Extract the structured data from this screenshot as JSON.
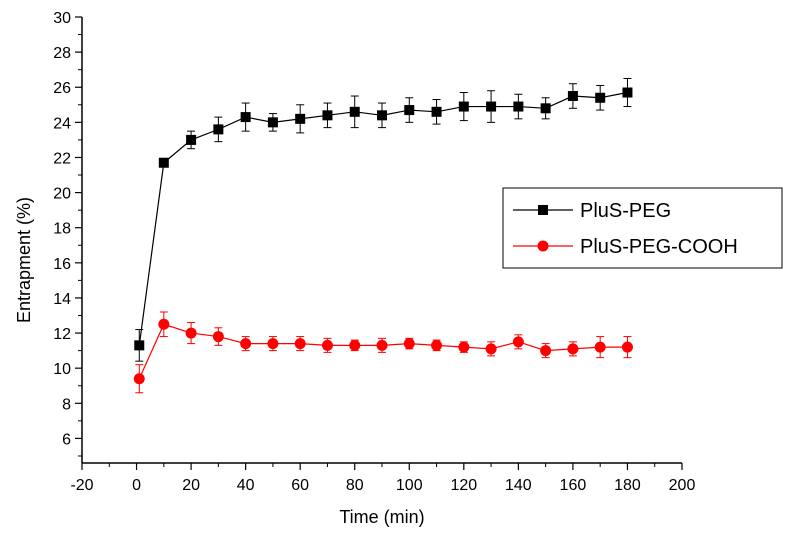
{
  "chart_data": {
    "type": "line",
    "xlabel": "Time (min)",
    "ylabel": "Entrapment (%)",
    "xlim": [
      -20,
      200
    ],
    "ylim": [
      4.6,
      30
    ],
    "xticks": [
      -20,
      0,
      20,
      40,
      60,
      80,
      100,
      120,
      140,
      160,
      180,
      200
    ],
    "yticks": [
      6,
      8,
      10,
      12,
      14,
      16,
      18,
      20,
      22,
      24,
      26,
      28,
      30
    ],
    "legend_position": "right",
    "grid": false,
    "series": [
      {
        "name": "PluS-PEG",
        "color": "#000000",
        "marker": "square",
        "x": [
          1,
          10,
          20,
          30,
          40,
          50,
          60,
          70,
          80,
          90,
          100,
          110,
          120,
          130,
          140,
          150,
          160,
          170,
          180
        ],
        "y": [
          11.3,
          21.7,
          23.0,
          23.6,
          24.3,
          24.0,
          24.2,
          24.4,
          24.6,
          24.4,
          24.7,
          24.6,
          24.9,
          24.9,
          24.9,
          24.8,
          25.5,
          25.4,
          25.7
        ],
        "err": [
          0.9,
          0.2,
          0.5,
          0.7,
          0.8,
          0.5,
          0.8,
          0.7,
          0.9,
          0.7,
          0.7,
          0.7,
          0.8,
          0.9,
          0.7,
          0.6,
          0.7,
          0.7,
          0.8
        ]
      },
      {
        "name": "PluS-PEG-COOH",
        "color": "#ff0000",
        "marker": "circle",
        "x": [
          1,
          10,
          20,
          30,
          40,
          50,
          60,
          70,
          80,
          90,
          100,
          110,
          120,
          130,
          140,
          150,
          160,
          170,
          180
        ],
        "y": [
          9.4,
          12.5,
          12.0,
          11.8,
          11.4,
          11.4,
          11.4,
          11.3,
          11.3,
          11.3,
          11.4,
          11.3,
          11.2,
          11.1,
          11.5,
          11.0,
          11.1,
          11.2,
          11.2
        ],
        "err": [
          0.8,
          0.7,
          0.6,
          0.5,
          0.4,
          0.4,
          0.4,
          0.4,
          0.3,
          0.4,
          0.3,
          0.3,
          0.3,
          0.4,
          0.4,
          0.4,
          0.4,
          0.6,
          0.6
        ]
      }
    ]
  }
}
